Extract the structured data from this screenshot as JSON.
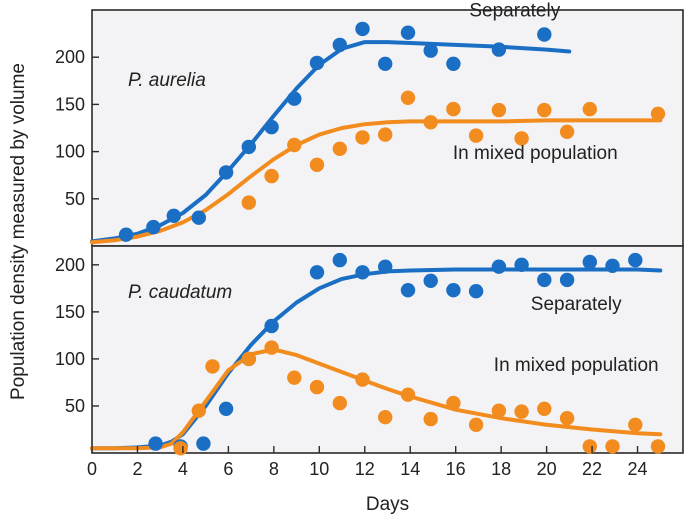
{
  "chart_data": {
    "type": "scatter",
    "xlabel": "Days",
    "ylabel": "Population density measured by volume",
    "x_ticks": [
      "0",
      "2",
      "4",
      "6",
      "8",
      "10",
      "12",
      "14",
      "16",
      "18",
      "20",
      "22",
      "24"
    ],
    "xlim": [
      0,
      26
    ],
    "colors": {
      "separately": "#1a6fc4",
      "mixed": "#f28c1e",
      "panel_bg": "#f3f3f5",
      "frame": "#2b2b2b"
    },
    "panels": [
      {
        "title": "P. aurelia",
        "ylim": [
          0,
          250
        ],
        "y_ticks": [
          "50",
          "100",
          "150",
          "200"
        ],
        "series": [
          {
            "name": "Separately",
            "color": "#1a6fc4",
            "points": [
              [
                1.5,
                12
              ],
              [
                2.7,
                20
              ],
              [
                3.6,
                32
              ],
              [
                4.7,
                30
              ],
              [
                5.9,
                78
              ],
              [
                6.9,
                105
              ],
              [
                7.9,
                126
              ],
              [
                8.9,
                156
              ],
              [
                9.9,
                194
              ],
              [
                10.9,
                213
              ],
              [
                11.9,
                230
              ],
              [
                12.9,
                193
              ],
              [
                13.9,
                226
              ],
              [
                14.9,
                207
              ],
              [
                15.9,
                193
              ],
              [
                17.9,
                208
              ],
              [
                19.9,
                224
              ]
            ],
            "curve": [
              [
                0,
                5
              ],
              [
                1,
                8
              ],
              [
                2,
                13
              ],
              [
                3,
                22
              ],
              [
                4,
                35
              ],
              [
                5,
                54
              ],
              [
                6,
                80
              ],
              [
                7,
                108
              ],
              [
                8,
                138
              ],
              [
                9,
                167
              ],
              [
                10,
                192
              ],
              [
                11,
                209
              ],
              [
                12,
                216
              ],
              [
                13,
                216
              ],
              [
                14,
                215
              ],
              [
                16,
                213
              ],
              [
                18,
                211
              ],
              [
                20,
                208
              ],
              [
                21,
                206
              ]
            ]
          },
          {
            "name": "In mixed population",
            "color": "#f28c1e",
            "points": [
              [
                6.9,
                46
              ],
              [
                7.9,
                74
              ],
              [
                8.9,
                107
              ],
              [
                9.9,
                86
              ],
              [
                10.9,
                103
              ],
              [
                11.9,
                115
              ],
              [
                12.9,
                118
              ],
              [
                13.9,
                157
              ],
              [
                14.9,
                131
              ],
              [
                15.9,
                145
              ],
              [
                16.9,
                117
              ],
              [
                17.9,
                144
              ],
              [
                18.9,
                114
              ],
              [
                19.9,
                144
              ],
              [
                20.9,
                121
              ],
              [
                21.9,
                145
              ],
              [
                24.9,
                140
              ]
            ],
            "curve": [
              [
                0,
                4
              ],
              [
                1,
                6
              ],
              [
                2,
                10
              ],
              [
                3,
                16
              ],
              [
                4,
                25
              ],
              [
                5,
                38
              ],
              [
                6,
                55
              ],
              [
                7,
                74
              ],
              [
                8,
                92
              ],
              [
                9,
                107
              ],
              [
                10,
                118
              ],
              [
                11,
                125
              ],
              [
                12,
                129
              ],
              [
                13,
                131
              ],
              [
                14,
                132
              ],
              [
                16,
                132
              ],
              [
                18,
                132
              ],
              [
                20,
                133
              ],
              [
                22,
                133
              ],
              [
                25,
                133
              ]
            ]
          }
        ]
      },
      {
        "title": "P. caudatum",
        "ylim": [
          0,
          220
        ],
        "y_ticks": [
          "50",
          "100",
          "150",
          "200"
        ],
        "series": [
          {
            "name": "Separately",
            "color": "#1a6fc4",
            "points": [
              [
                2.8,
                10
              ],
              [
                3.9,
                7
              ],
              [
                4.9,
                10
              ],
              [
                5.9,
                47
              ],
              [
                6.9,
                100
              ],
              [
                7.9,
                135
              ],
              [
                9.9,
                192
              ],
              [
                10.9,
                205
              ],
              [
                11.9,
                192
              ],
              [
                12.9,
                198
              ],
              [
                13.9,
                173
              ],
              [
                14.9,
                183
              ],
              [
                15.9,
                173
              ],
              [
                16.9,
                172
              ],
              [
                17.9,
                198
              ],
              [
                18.9,
                200
              ],
              [
                19.9,
                184
              ],
              [
                20.9,
                184
              ],
              [
                21.9,
                203
              ],
              [
                22.9,
                199
              ],
              [
                23.9,
                205
              ]
            ],
            "curve": [
              [
                0,
                5
              ],
              [
                1,
                5
              ],
              [
                2,
                6
              ],
              [
                3,
                8
              ],
              [
                3.5,
                12
              ],
              [
                4,
                20
              ],
              [
                5,
                50
              ],
              [
                6,
                85
              ],
              [
                7,
                115
              ],
              [
                8,
                140
              ],
              [
                9,
                160
              ],
              [
                10,
                175
              ],
              [
                11,
                185
              ],
              [
                12,
                190
              ],
              [
                13,
                193
              ],
              [
                14,
                194
              ],
              [
                16,
                195
              ],
              [
                18,
                195
              ],
              [
                20,
                195
              ],
              [
                22,
                195
              ],
              [
                24,
                195
              ],
              [
                25,
                194
              ]
            ]
          },
          {
            "name": "In mixed population",
            "color": "#f28c1e",
            "points": [
              [
                3.9,
                5
              ],
              [
                4.7,
                45
              ],
              [
                5.3,
                92
              ],
              [
                6.9,
                100
              ],
              [
                7.9,
                112
              ],
              [
                8.9,
                80
              ],
              [
                9.9,
                70
              ],
              [
                10.9,
                53
              ],
              [
                11.9,
                78
              ],
              [
                12.9,
                38
              ],
              [
                13.9,
                62
              ],
              [
                14.9,
                36
              ],
              [
                15.9,
                53
              ],
              [
                16.9,
                30
              ],
              [
                17.9,
                45
              ],
              [
                18.9,
                44
              ],
              [
                19.9,
                47
              ],
              [
                20.9,
                37
              ],
              [
                21.9,
                7
              ],
              [
                22.9,
                7
              ],
              [
                23.9,
                30
              ],
              [
                24.9,
                7
              ]
            ],
            "curve": [
              [
                0,
                5
              ],
              [
                1,
                5
              ],
              [
                2,
                5
              ],
              [
                3,
                6
              ],
              [
                3.5,
                10
              ],
              [
                4,
                22
              ],
              [
                5,
                55
              ],
              [
                6,
                88
              ],
              [
                7,
                105
              ],
              [
                8,
                110
              ],
              [
                9,
                104
              ],
              [
                10,
                95
              ],
              [
                11,
                86
              ],
              [
                12,
                77
              ],
              [
                13,
                68
              ],
              [
                14,
                60
              ],
              [
                15,
                53
              ],
              [
                16,
                46
              ],
              [
                18,
                37
              ],
              [
                20,
                30
              ],
              [
                22,
                25
              ],
              [
                24,
                21
              ],
              [
                25,
                20
              ]
            ]
          }
        ]
      }
    ],
    "annotations": [
      {
        "panel": 0,
        "text": "Separately",
        "x": 18.6,
        "y": 243
      },
      {
        "panel": 0,
        "text": "In mixed population",
        "x": 19.5,
        "y": 92
      },
      {
        "panel": 1,
        "text": "Separately",
        "x": 21.3,
        "y": 152
      },
      {
        "panel": 1,
        "text": "In mixed population",
        "x": 21.3,
        "y": 87
      }
    ]
  }
}
